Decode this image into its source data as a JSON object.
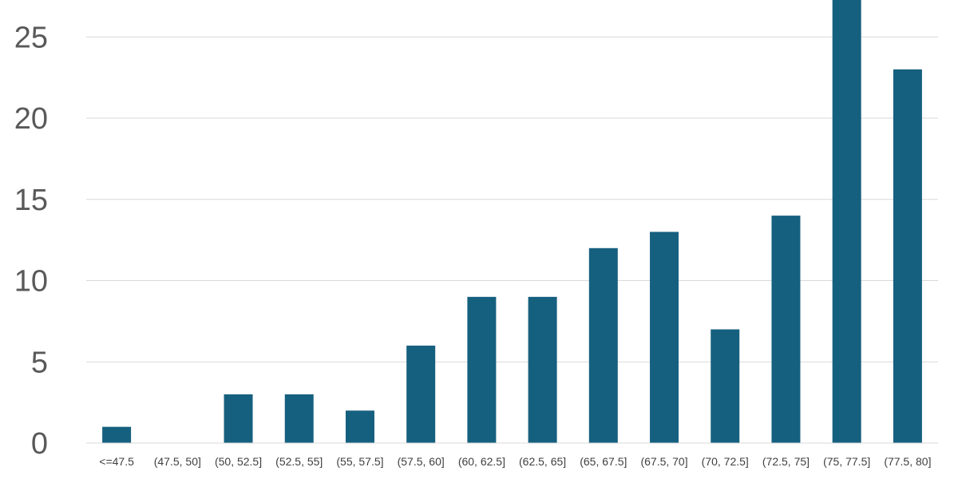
{
  "chart_data": {
    "type": "bar",
    "title": "",
    "xlabel": "",
    "ylabel": "",
    "categories": [
      "<=47.5",
      "(47.5, 50]",
      "(50, 52.5]",
      "(52.5, 55]",
      "(55, 57.5]",
      "(57.5, 60]",
      "(60, 62.5]",
      "(62.5, 65]",
      "(65, 67.5]",
      "(67.5, 70]",
      "(70, 72.5]",
      "(72.5, 75]",
      "(75, 77.5]",
      "(77.5, 80]"
    ],
    "values": [
      1,
      0,
      3,
      3,
      2,
      6,
      9,
      9,
      12,
      13,
      7,
      14,
      28,
      23
    ],
    "ylim": [
      0,
      27
    ],
    "yticks": [
      0,
      5,
      10,
      15,
      20,
      25
    ],
    "grid": true,
    "legend": "none",
    "bar_color": "#16607f"
  }
}
